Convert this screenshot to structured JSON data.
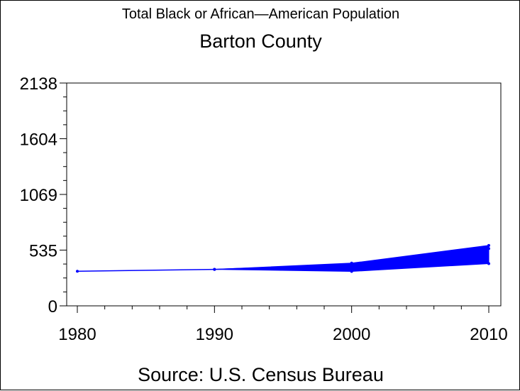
{
  "chart_data": {
    "type": "line",
    "title": "Total Black or African—American Population",
    "subtitle": "Barton County",
    "source": "Source: U.S. Census Bureau",
    "xlabel": "",
    "ylabel": "",
    "x": [
      1980,
      1990,
      2000,
      2010
    ],
    "x_ticks": [
      "1980",
      "1990",
      "2000",
      "2010"
    ],
    "y_ticks": [
      "0",
      "535",
      "1069",
      "1604",
      "2138"
    ],
    "ylim": [
      0,
      2138
    ],
    "xlim": [
      1980,
      2010
    ],
    "grid": false,
    "series": [
      {
        "values": [
          332,
          350,
          395,
          550
        ]
      }
    ],
    "band": {
      "x": [
        1990,
        2000,
        2010
      ],
      "lower": [
        350,
        330,
        405
      ],
      "upper": [
        350,
        410,
        580
      ]
    },
    "colors": {
      "line": "#0000ff",
      "axis": "#000000"
    }
  }
}
